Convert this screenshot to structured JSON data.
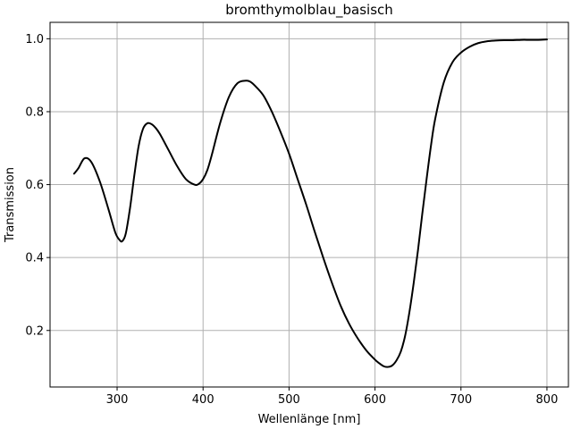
{
  "chart_data": {
    "type": "line",
    "title": "bromthymolblau_basisch",
    "xlabel": "Wellenlänge [nm]",
    "ylabel": "Transmission",
    "xlim": [
      222,
      825
    ],
    "ylim": [
      0.045,
      1.045
    ],
    "grid": true,
    "xticks": [
      300,
      400,
      500,
      600,
      700,
      800
    ],
    "yticks": [
      0.2,
      0.4,
      0.6,
      0.8,
      1.0
    ],
    "xtick_labels": [
      "300",
      "400",
      "500",
      "600",
      "700",
      "800"
    ],
    "ytick_labels": [
      "0.2",
      "0.4",
      "0.6",
      "0.8",
      "1.0"
    ],
    "series": [
      {
        "color": "#000000",
        "x": [
          250,
          255,
          262,
          270,
          280,
          290,
          298,
          303,
          306,
          310,
          315,
          320,
          325,
          330,
          335,
          340,
          345,
          350,
          360,
          370,
          380,
          390,
          395,
          400,
          405,
          410,
          420,
          430,
          440,
          450,
          455,
          460,
          470,
          480,
          490,
          500,
          510,
          520,
          530,
          540,
          550,
          560,
          570,
          580,
          590,
          600,
          605,
          610,
          615,
          620,
          625,
          630,
          635,
          640,
          645,
          650,
          655,
          660,
          665,
          670,
          680,
          690,
          700,
          710,
          720,
          730,
          740,
          750,
          760,
          770,
          780,
          790,
          800
        ],
        "y": [
          0.63,
          0.645,
          0.672,
          0.662,
          0.608,
          0.532,
          0.468,
          0.448,
          0.445,
          0.465,
          0.535,
          0.625,
          0.705,
          0.752,
          0.768,
          0.766,
          0.755,
          0.738,
          0.694,
          0.65,
          0.615,
          0.6,
          0.602,
          0.615,
          0.64,
          0.68,
          0.77,
          0.84,
          0.878,
          0.885,
          0.882,
          0.872,
          0.845,
          0.8,
          0.745,
          0.685,
          0.615,
          0.545,
          0.47,
          0.398,
          0.33,
          0.268,
          0.218,
          0.178,
          0.145,
          0.12,
          0.11,
          0.102,
          0.1,
          0.104,
          0.118,
          0.142,
          0.185,
          0.25,
          0.33,
          0.42,
          0.52,
          0.615,
          0.705,
          0.78,
          0.88,
          0.935,
          0.962,
          0.978,
          0.988,
          0.993,
          0.995,
          0.996,
          0.996,
          0.997,
          0.997,
          0.997,
          0.998
        ]
      }
    ]
  }
}
